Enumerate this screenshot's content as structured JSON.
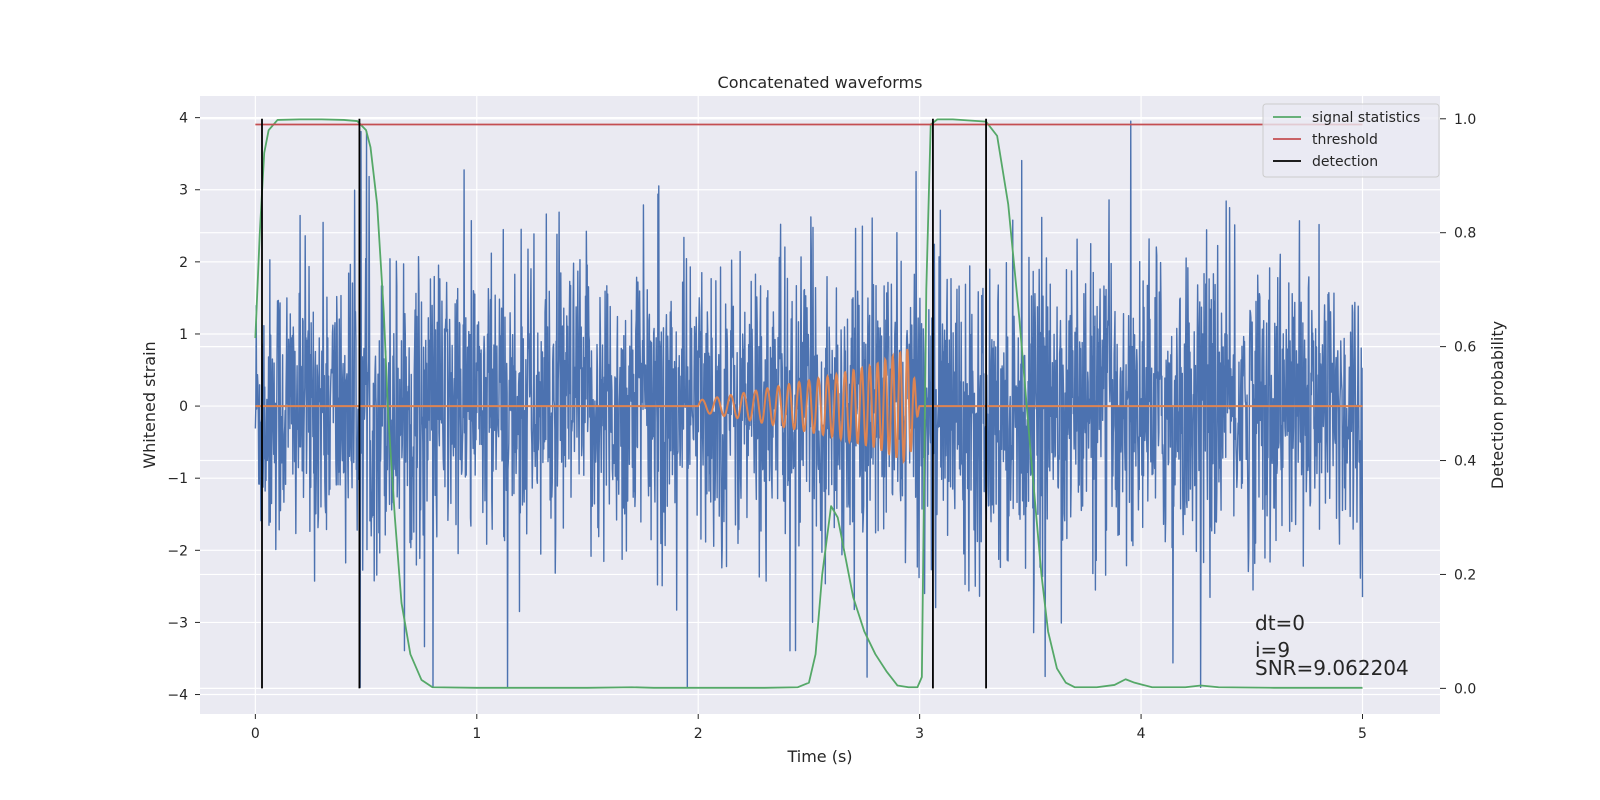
{
  "chart_data": {
    "type": "line",
    "title": "Concatenated waveforms",
    "xlabel": "Time (s)",
    "ylabel": "Whitened strain",
    "ylabel_right": "Detection probability",
    "xlim": [
      -0.25,
      5.35
    ],
    "ylim": [
      -4.27,
      4.3
    ],
    "ylim_right": [
      -0.045,
      1.04
    ],
    "xticks": [
      "0",
      "1",
      "2",
      "3",
      "4",
      "5"
    ],
    "yticks": [
      "4",
      "3",
      "2",
      "1",
      "0",
      "−1",
      "−2",
      "−3",
      "−4"
    ],
    "yticks_right": [
      "1.0",
      "0.8",
      "0.6",
      "0.4",
      "0.2",
      "0.0"
    ],
    "grid": true,
    "legend": {
      "placement": "top-right",
      "entries": [
        "signal statistics",
        "threshold",
        "detection"
      ]
    },
    "colors": {
      "noise": "#4c72b0",
      "injected_signal": "#dd8452",
      "signal_statistics": "#55a868",
      "threshold": "#c44e52",
      "detection": "#000000",
      "plot_background": "#eaeaf2",
      "grid": "#ffffff"
    },
    "series": [
      {
        "role": "noise",
        "x_range": [
          0,
          5
        ],
        "y_range": [
          -3.9,
          3.95
        ]
      },
      {
        "role": "injected_signal",
        "x": [
          0,
          2.0,
          2.2,
          2.4,
          2.6,
          2.8,
          2.95,
          3.0,
          5
        ],
        "amplitude": [
          0,
          0.08,
          0.18,
          0.3,
          0.42,
          0.58,
          0.8,
          0,
          0
        ]
      },
      {
        "name": "signal statistics",
        "axis": "right",
        "x": [
          0.0,
          0.02,
          0.04,
          0.06,
          0.1,
          0.2,
          0.3,
          0.4,
          0.46,
          0.5,
          0.52,
          0.55,
          0.58,
          0.6,
          0.63,
          0.66,
          0.7,
          0.75,
          0.8,
          1.0,
          1.5,
          1.7,
          1.8,
          2.0,
          2.3,
          2.45,
          2.5,
          2.53,
          2.56,
          2.6,
          2.63,
          2.66,
          2.7,
          2.75,
          2.8,
          2.85,
          2.9,
          2.95,
          2.99,
          3.01,
          3.03,
          3.05,
          3.08,
          3.15,
          3.3,
          3.35,
          3.4,
          3.45,
          3.5,
          3.55,
          3.58,
          3.62,
          3.66,
          3.7,
          3.8,
          3.88,
          3.93,
          3.97,
          4.05,
          4.2,
          4.27,
          4.35,
          4.6,
          5.0
        ],
        "y": [
          0.615,
          0.8,
          0.94,
          0.98,
          0.998,
          0.999,
          0.999,
          0.998,
          0.996,
          0.98,
          0.95,
          0.85,
          0.66,
          0.48,
          0.3,
          0.15,
          0.06,
          0.015,
          0.002,
          0.001,
          0.001,
          0.002,
          0.001,
          0.001,
          0.001,
          0.002,
          0.01,
          0.06,
          0.2,
          0.32,
          0.3,
          0.24,
          0.16,
          0.1,
          0.06,
          0.03,
          0.005,
          0.002,
          0.002,
          0.02,
          0.7,
          0.99,
          0.999,
          0.999,
          0.995,
          0.97,
          0.85,
          0.65,
          0.42,
          0.2,
          0.1,
          0.035,
          0.01,
          0.002,
          0.002,
          0.006,
          0.016,
          0.01,
          0.002,
          0.002,
          0.005,
          0.002,
          0.001,
          0.001
        ]
      },
      {
        "name": "threshold",
        "axis": "right",
        "x": [
          0,
          5
        ],
        "y": [
          0.99,
          0.99
        ]
      },
      {
        "name": "detection",
        "axis": "right",
        "type": "vlines",
        "x": [
          0.03,
          0.47,
          3.06,
          3.3
        ],
        "y_range": [
          0,
          1.0
        ]
      }
    ],
    "annotations": [
      "dt=0",
      "i=9",
      "SNR=9.062204"
    ]
  }
}
